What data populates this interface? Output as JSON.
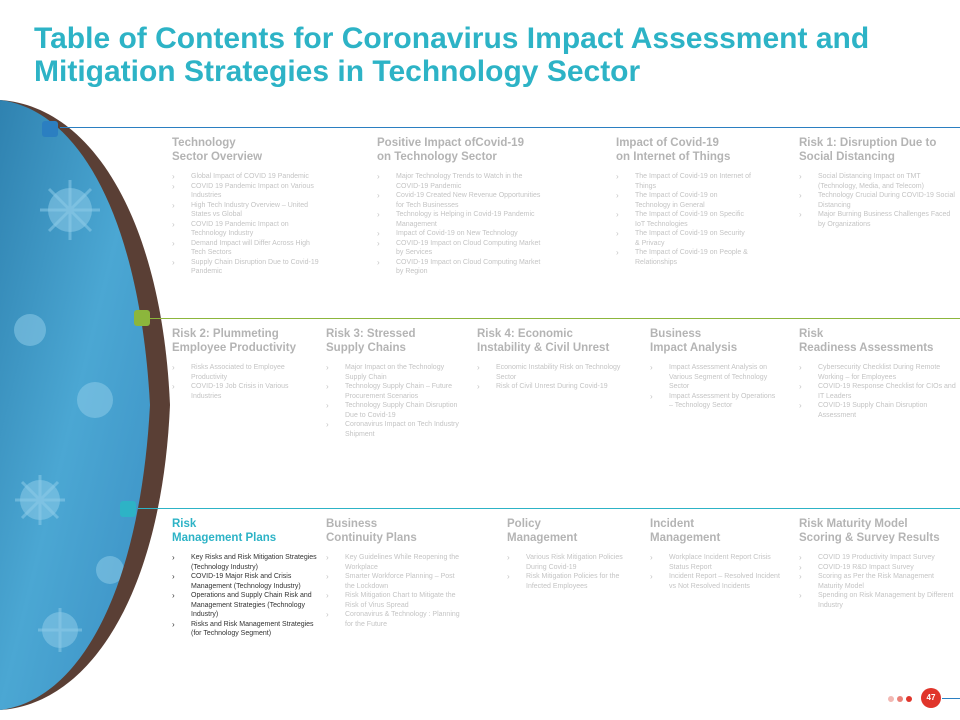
{
  "title": "Table of Contents for Coronavirus Impact Assessment and Mitigation Strategies in Technology Sector",
  "colors": {
    "title": "#2db3c6",
    "row1": "#2b7fc1",
    "row2": "#8cb63c",
    "row3": "#2db3c6",
    "accent": "#e0352b"
  },
  "sections": [
    {
      "heading": "Technology\nSector Overview",
      "items": [
        "Global Impact of COVID 19 Pandemic",
        "COVID 19 Pandemic Impact on Various Industries",
        "High Tech Industry Overview – United States vs Global",
        "COVID 19 Pandemic Impact on Technology Industry",
        "Demand Impact will Differ Across High Tech Sectors",
        "Supply Chain Disruption Due to Covid-19 Pandemic"
      ]
    },
    {
      "heading": "Positive Impact ofCovid-19\non Technology Sector",
      "items": [
        "Major Technology Trends to Watch in the COVID-19 Pandemic",
        "Covid-19 Created New Revenue Opportunities for Tech Businesses",
        "Technology is Helping in Covid-19 Pandemic Management",
        "Impact of Covid-19 on New Technology",
        "COVID-19 Impact on Cloud Computing Market by Services",
        "COVID-19 Impact on Cloud Computing Market by Region"
      ]
    },
    {
      "heading": "Impact of Covid-19\non Internet of Things",
      "items": [
        "The Impact of Covid-19 on Internet of Things",
        "The Impact of Covid-19 on Technology in General",
        "The Impact of Covid-19 on Specific IoT Technologies",
        "The Impact of Covid-19 on Security & Privacy",
        "The Impact of Covid-19 on People & Relationships"
      ]
    },
    {
      "heading": "Risk 1: Disruption Due to\nSocial Distancing",
      "items": [
        "Social Distancing Impact on TMT (Technology, Media, and Telecom)",
        "Technology Crucial During COVID-19 Social Distancing",
        "Major Burning Business Challenges Faced by Organizations"
      ]
    },
    {
      "heading": "Risk 2: Plummeting\nEmployee Productivity",
      "items": [
        "Risks Associated to Employee Productivity",
        "COVID-19 Job Crisis in Various Industries"
      ]
    },
    {
      "heading": "Risk 3: Stressed\nSupply Chains",
      "items": [
        "Major Impact on the Technology Supply Chain",
        "Technology Supply Chain – Future Procurement Scenarios",
        "Technology Supply Chain Disruption Due to Covid-19",
        "Coronavirus Impact on Tech Industry Shipment"
      ]
    },
    {
      "heading": "Risk 4: Economic\nInstability & Civil Unrest",
      "items": [
        "Economic Instability Risk on Technology Sector",
        "Risk of Civil Unrest During Covid-19"
      ]
    },
    {
      "heading": "Business\nImpact Analysis",
      "items": [
        "Impact Assessment Analysis on Various Segment of Technology Sector",
        "Impact Assessment by Operations – Technology Sector"
      ]
    },
    {
      "heading": "Risk\nReadiness Assessments",
      "items": [
        "Cybersecurity Checklist During Remote Working – for Employees",
        "COVID-19 Response Checklist for CIOs and IT Leaders",
        "COVID-19 Supply Chain Disruption Assessment"
      ]
    },
    {
      "heading": "Risk\nManagement Plans",
      "items": [
        "Key Risks and Risk Mitigation Strategies (Technology Industry)",
        "COVID-19 Major Risk and Crisis Management (Technology Industry)",
        "Operations and Supply Chain Risk and Management Strategies (Technology Industry)",
        "Risks and Risk Management Strategies (for Technology Segment)"
      ]
    },
    {
      "heading": "Business\nContinuity Plans",
      "items": [
        "Key Guidelines While Reopening the Workplace",
        "Smarter Workforce Planning – Post the Lockdown",
        "Risk Mitigation Chart to Mitigate the Risk of Virus Spread",
        "Coronavirus & Technology : Planning for the Future"
      ]
    },
    {
      "heading": "Policy\nManagement",
      "items": [
        "Various Risk Mitigation Policies During Covid-19",
        "Risk Mitigation Policies for the Infected Employees"
      ]
    },
    {
      "heading": "Incident\nManagement",
      "items": [
        "Workplace Incident Report Crisis Status Report",
        "Incident Report – Resolved Incident vs Not Resolved Incidents"
      ]
    },
    {
      "heading": "Risk Maturity Model\nScoring & Survey Results",
      "items": [
        "COVID 19 Productivity Impact Survey",
        "COVID-19 R&D Impact Survey",
        "Scoring as Per the Risk Management Maturity Model",
        "Spending on Risk Management by Different Industry"
      ]
    }
  ],
  "footer": {
    "page_number": "47"
  }
}
